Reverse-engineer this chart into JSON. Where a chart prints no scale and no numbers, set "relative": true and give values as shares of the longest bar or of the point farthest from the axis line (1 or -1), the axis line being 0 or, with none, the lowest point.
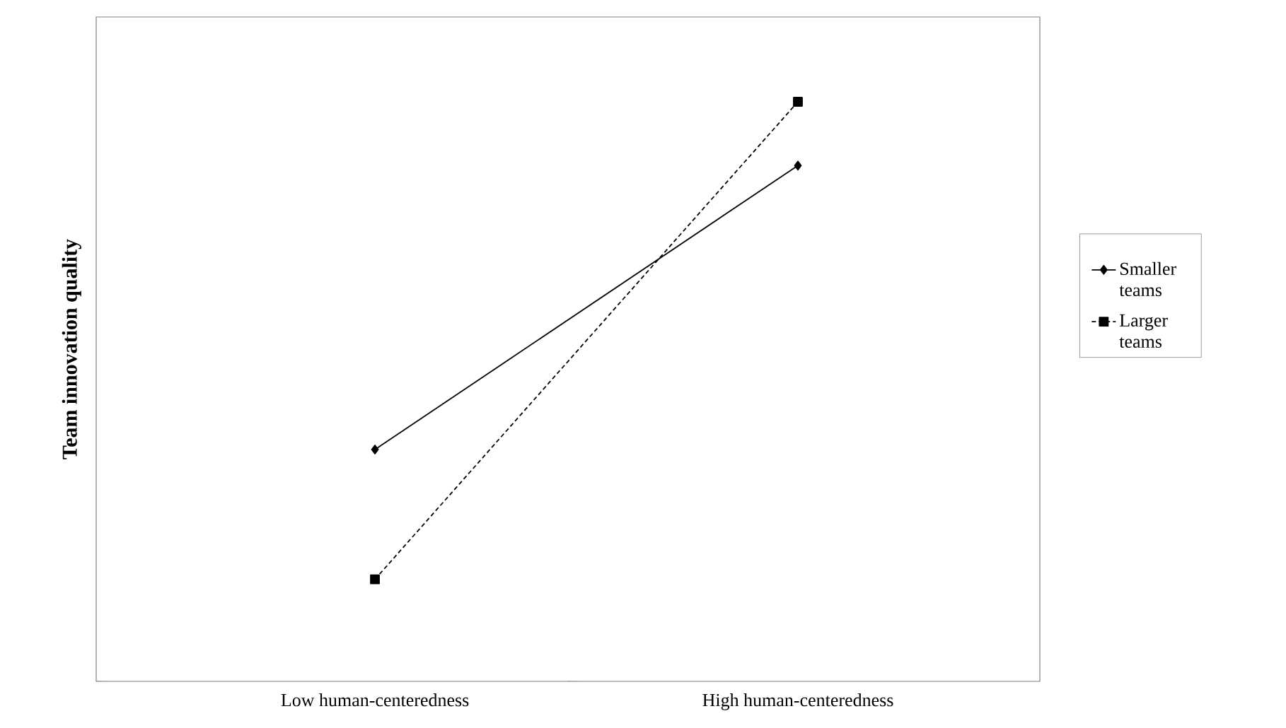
{
  "chart_data": {
    "type": "line",
    "relative": true,
    "ylabel": "Team innovation quality",
    "categories": [
      "Low human-centeredness",
      "High human-centeredness"
    ],
    "legend": "right",
    "series": [
      {
        "name": "Smaller teams",
        "color": "#000000",
        "marker": "diamond",
        "line_style": "solid",
        "values": [
          0.4,
          0.89
        ]
      },
      {
        "name": "Larger teams",
        "color": "#000000",
        "marker": "square",
        "line_style": "dashed",
        "values": [
          0.176,
          1
        ]
      }
    ]
  }
}
